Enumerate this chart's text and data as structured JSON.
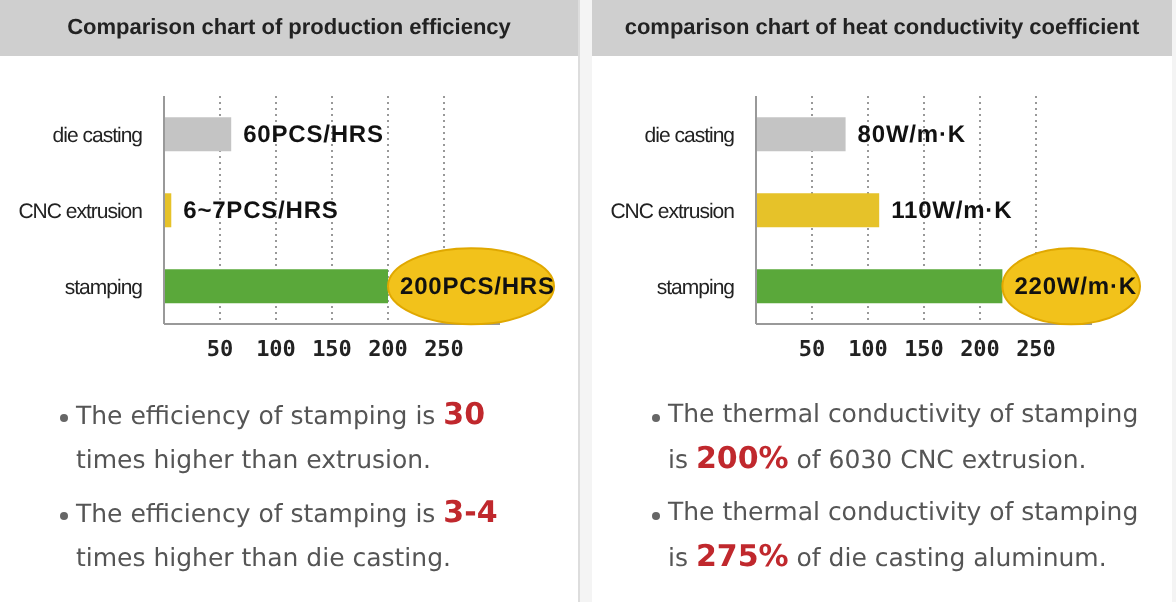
{
  "chart_data": [
    {
      "type": "bar",
      "orientation": "horizontal",
      "title": "Comparison chart of production efficiency",
      "categories": [
        "die casting",
        "CNC extrusion",
        "stamping"
      ],
      "values": [
        60,
        6.5,
        200
      ],
      "colors": [
        "#c4c4c4",
        "#e6c229",
        "#5aa83a"
      ],
      "value_labels": [
        "60PCS/HRS",
        "6~7PCS/HRS",
        "200PCS/HRS"
      ],
      "xlim": [
        0,
        300
      ],
      "xticks": [
        50,
        100,
        150,
        200,
        250
      ],
      "grid": "x",
      "annotations": [
        "The efficiency of stamping is 30 times higher than extrusion.",
        "The efficiency of stamping is 3-4 times higher than die casting."
      ]
    },
    {
      "type": "bar",
      "orientation": "horizontal",
      "title": "comparison chart of heat conductivity coefficient",
      "categories": [
        "die casting",
        "CNC extrusion",
        "stamping"
      ],
      "values": [
        80,
        110,
        220
      ],
      "colors": [
        "#c4c4c4",
        "#e6c229",
        "#5aa83a"
      ],
      "value_labels": [
        "80W/m·K",
        "110W/m·K",
        "220W/m·K"
      ],
      "xlim": [
        0,
        300
      ],
      "xticks": [
        50,
        100,
        150,
        200,
        250
      ],
      "grid": "x",
      "annotations": [
        "The thermal conductivity of stamping is 200% of 6030 CNC extrusion.",
        "The thermal conductivity of stamping is 275% of die casting aluminum."
      ]
    }
  ]
}
